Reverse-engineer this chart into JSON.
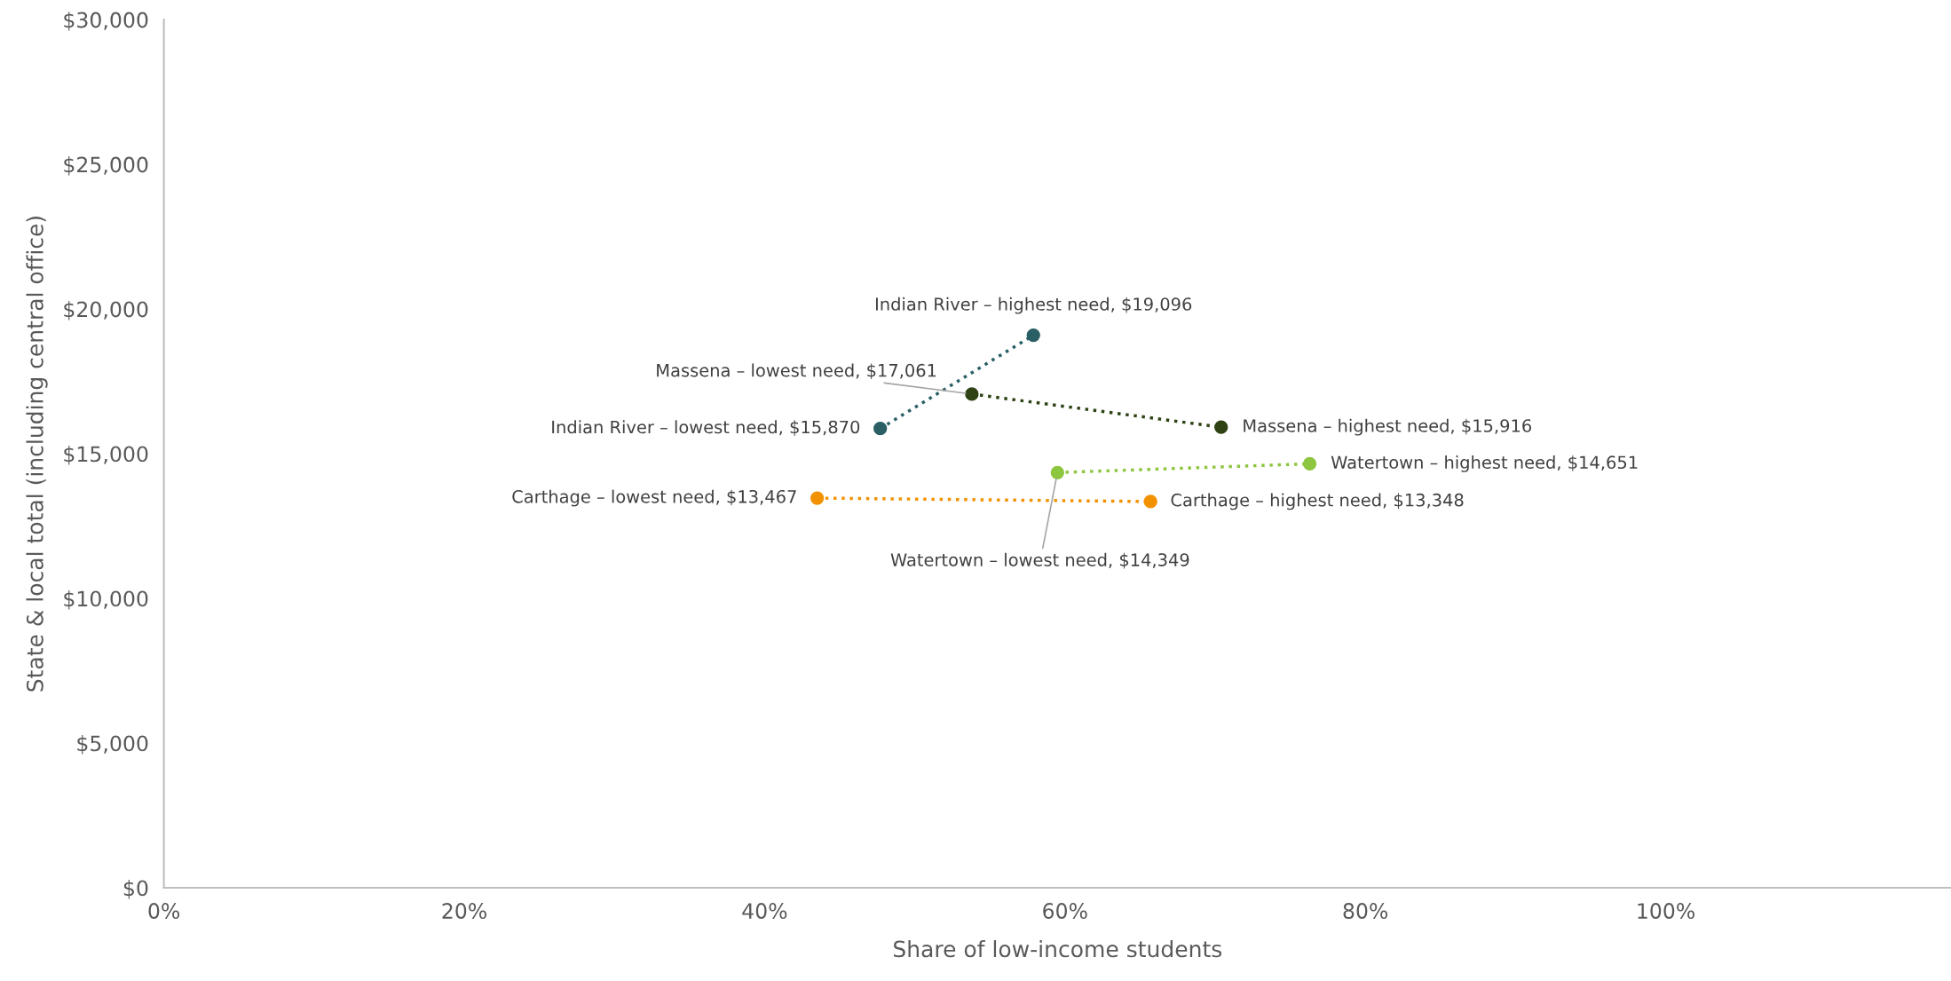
{
  "chart_data": {
    "type": "line",
    "xlabel": "Share of low-income students",
    "ylabel": "State & local total (including central office)",
    "xlim": [
      0,
      119
    ],
    "ylim": [
      0,
      30000
    ],
    "xticks": [
      {
        "value": 0,
        "label": "0%"
      },
      {
        "value": 20,
        "label": "20%"
      },
      {
        "value": 40,
        "label": "40%"
      },
      {
        "value": 60,
        "label": "60%"
      },
      {
        "value": 80,
        "label": "80%"
      },
      {
        "value": 100,
        "label": "100%"
      }
    ],
    "yticks": [
      {
        "value": 0,
        "label": "$0"
      },
      {
        "value": 5000,
        "label": "$5,000"
      },
      {
        "value": 10000,
        "label": "$10,000"
      },
      {
        "value": 15000,
        "label": "$15,000"
      },
      {
        "value": 20000,
        "label": "$20,000"
      },
      {
        "value": 25000,
        "label": "$25,000"
      },
      {
        "value": 30000,
        "label": "$30,000"
      }
    ],
    "grid": false,
    "marker": "circle",
    "line_style": "dotted",
    "series": [
      {
        "color": "#2a5f66",
        "x": [
          47.7,
          57.9
        ],
        "values": [
          15870,
          19096
        ]
      },
      {
        "color": "#2e4214",
        "x": [
          53.8,
          70.4
        ],
        "values": [
          17061,
          15916
        ]
      },
      {
        "color": "#8dc63f",
        "x": [
          59.5,
          76.3
        ],
        "values": [
          14349,
          14651
        ]
      },
      {
        "color": "#f39200",
        "x": [
          43.5,
          65.7
        ],
        "values": [
          13467,
          13348
        ]
      }
    ],
    "annotations": [
      {
        "text": "Indian River – highest need, $19,096",
        "x": 57.9,
        "y": 19096
      },
      {
        "text": "Indian River – lowest need, $15,870",
        "x": 47.7,
        "y": 15870
      },
      {
        "text": "Massena – lowest need, $17,061",
        "x": 53.8,
        "y": 17061
      },
      {
        "text": "Massena – highest need, $15,916",
        "x": 70.4,
        "y": 15916
      },
      {
        "text": "Watertown – highest need, $14,651",
        "x": 76.3,
        "y": 14651
      },
      {
        "text": "Watertown – lowest need, $14,349",
        "x": 59.5,
        "y": 14349
      },
      {
        "text": "Carthage – lowest need, $13,467",
        "x": 43.5,
        "y": 13467
      },
      {
        "text": "Carthage – highest need, $13,348",
        "x": 65.7,
        "y": 13348
      }
    ]
  }
}
